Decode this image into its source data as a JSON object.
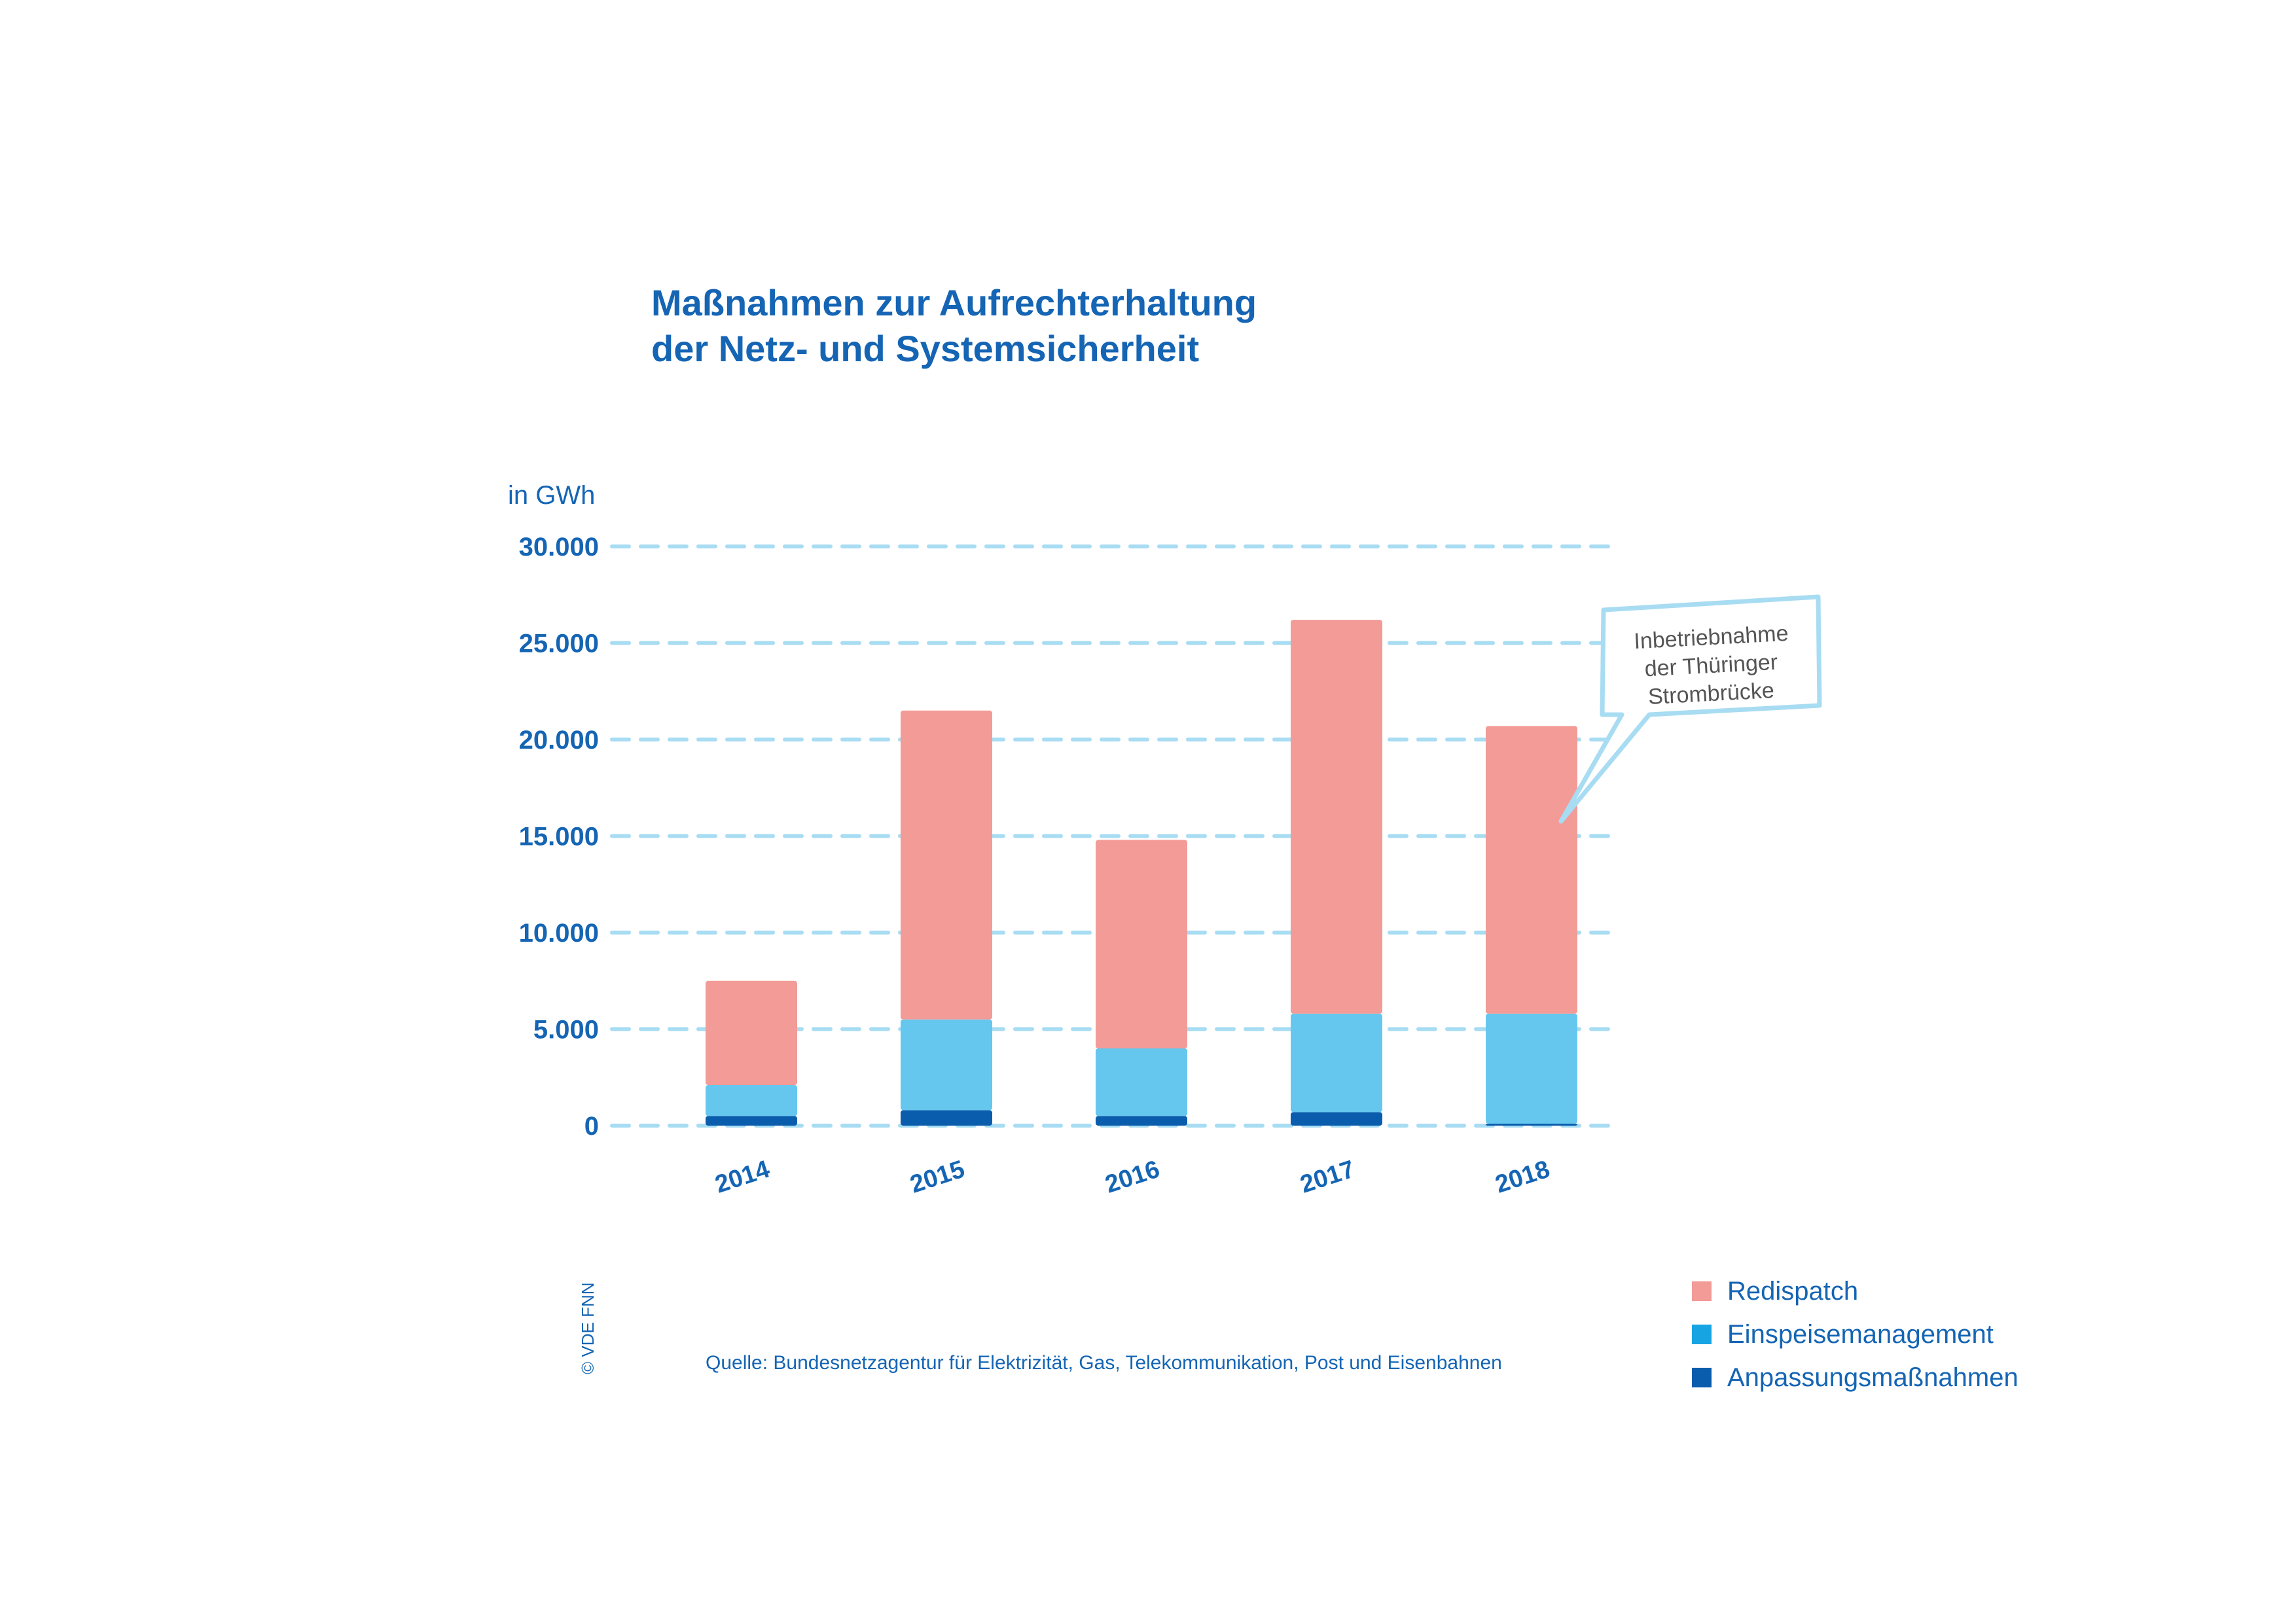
{
  "colors": {
    "text": "#1565b4",
    "grid": "#a8dcf2",
    "redispatch": "#f29b97",
    "einspeise": "#66c7ee",
    "anpassung": "#0a5cad",
    "callout_border": "#a8dcf2",
    "callout_text": "#555555"
  },
  "page": {
    "title_line1": "Maßnahmen zur Aufrechterhaltung",
    "title_line2": "der Netz- und Systemsicherheit",
    "source": "Quelle: Bundesnetzagentur für Elektrizität, Gas, Telekommunikation, Post und Eisenbahnen",
    "copyright": "© VDE FNN"
  },
  "chart_data": {
    "type": "bar",
    "stacked": true,
    "title": "Maßnahmen zur Aufrechterhaltung der Netz- und Systemsicherheit",
    "ylabel": "in GWh",
    "ylim": [
      0,
      30000
    ],
    "yticks": [
      0,
      5000,
      10000,
      15000,
      20000,
      25000,
      30000
    ],
    "ytick_labels": [
      "0",
      "5.000",
      "10.000",
      "15.000",
      "20.000",
      "25.000",
      "30.000"
    ],
    "categories": [
      "2014",
      "2015",
      "2016",
      "2017",
      "2018"
    ],
    "grid": true,
    "legend_position": "bottom-right",
    "series": [
      {
        "name": "Anpassungsmaßnahmen",
        "values": [
          500,
          800,
          500,
          700,
          100
        ]
      },
      {
        "name": "Einspeisemanagement",
        "values": [
          1600,
          4700,
          3500,
          5100,
          5700
        ]
      },
      {
        "name": "Redispatch",
        "values": [
          5400,
          16000,
          10800,
          20400,
          14900
        ]
      }
    ],
    "legend": [
      "Redispatch",
      "Einspeisemanagement",
      "Anpassungsmaßnahmen"
    ],
    "annotation": {
      "category": "2018",
      "lines": [
        "Inbetriebnahme",
        "der Thüringer",
        "Strombrücke"
      ]
    }
  }
}
